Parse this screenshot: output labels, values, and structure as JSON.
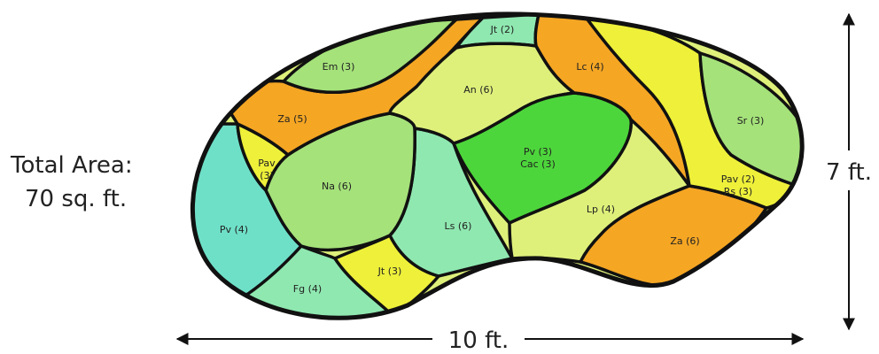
{
  "total_area": {
    "line1": "Total Area:",
    "line2": "70 sq. ft."
  },
  "dimensions": {
    "width": "10 ft.",
    "height": "7 ft."
  },
  "colors": {
    "orange": "#f5a623",
    "yellow": "#eef03a",
    "light_yellow_green": "#def07a",
    "light_green": "#a5e27a",
    "bright_green": "#4dd63b",
    "aqua": "#6fe0c8",
    "mint": "#8fe8b0",
    "outline": "#111111"
  },
  "beds": [
    {
      "key": "em",
      "lines": [
        "Em (3)"
      ],
      "color": "light_green"
    },
    {
      "key": "jt_top",
      "lines": [
        "Jt (2)"
      ],
      "color": "mint"
    },
    {
      "key": "za_left",
      "lines": [
        "Za (5)"
      ],
      "color": "orange"
    },
    {
      "key": "an",
      "lines": [
        "An (6)"
      ],
      "color": "light_yellow_green"
    },
    {
      "key": "lc",
      "lines": [
        "Lc (4)"
      ],
      "color": "orange"
    },
    {
      "key": "sr",
      "lines": [
        "Sr (3)"
      ],
      "color": "light_green"
    },
    {
      "key": "pav_left",
      "lines": [
        "Pav",
        "(3)"
      ],
      "color": "yellow"
    },
    {
      "key": "na",
      "lines": [
        "Na (6)"
      ],
      "color": "light_green"
    },
    {
      "key": "pv_cac",
      "lines": [
        "Pv (3)",
        "Cac (3)"
      ],
      "color": "bright_green"
    },
    {
      "key": "pav_rs",
      "lines": [
        "Pav (2)",
        "Rs (3)"
      ],
      "color": "yellow"
    },
    {
      "key": "pv_left",
      "lines": [
        "Pv (4)"
      ],
      "color": "aqua"
    },
    {
      "key": "ls",
      "lines": [
        "Ls (6)"
      ],
      "color": "mint"
    },
    {
      "key": "lp",
      "lines": [
        "Lp (4)"
      ],
      "color": "light_yellow_green"
    },
    {
      "key": "za_right",
      "lines": [
        "Za (6)"
      ],
      "color": "orange"
    },
    {
      "key": "jt_bottom",
      "lines": [
        "Jt (3)"
      ],
      "color": "yellow"
    },
    {
      "key": "fg",
      "lines": [
        "Fg (4)"
      ],
      "color": "mint"
    }
  ]
}
